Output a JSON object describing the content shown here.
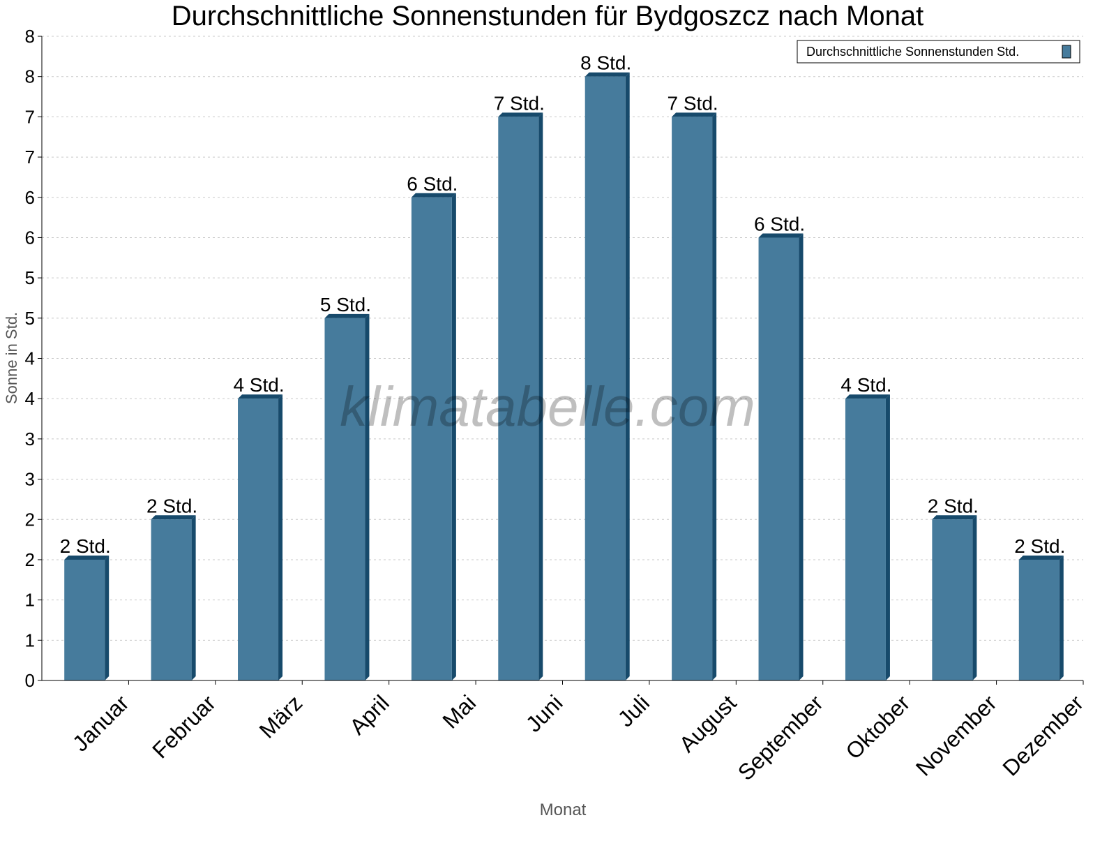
{
  "chart_data": {
    "type": "bar",
    "title": "Durchschnittliche Sonnenstunden für Bydgoszcz nach Monat",
    "xlabel": "Monat",
    "ylabel": "Sonne in Std.",
    "categories": [
      "Januar",
      "Februar",
      "März",
      "April",
      "Mai",
      "Juni",
      "Juli",
      "August",
      "September",
      "Oktober",
      "November",
      "Dezember"
    ],
    "series": [
      {
        "name": "Durchschnittliche Sonnenstunden Std.",
        "values": [
          1.5,
          2.0,
          3.5,
          4.5,
          6.0,
          7.0,
          7.5,
          7.0,
          5.5,
          3.5,
          2.0,
          1.5
        ],
        "labels": [
          "2 Std.",
          "2 Std.",
          "4 Std.",
          "5 Std.",
          "6 Std.",
          "7 Std.",
          "8 Std.",
          "7 Std.",
          "6 Std.",
          "4 Std.",
          "2 Std.",
          "2 Std."
        ]
      }
    ],
    "ylim": [
      0,
      8
    ],
    "ytick_step": 0.5,
    "ytick_labels": [
      "0",
      "1",
      "1",
      "2",
      "2",
      "3",
      "3",
      "4",
      "4",
      "5",
      "5",
      "6",
      "6",
      "7",
      "7",
      "8",
      "8"
    ],
    "grid": true,
    "legend_position": "top-right",
    "watermark": "klimatabelle.com",
    "colors": {
      "bar": "#467b9c",
      "bar_side": "#174a6b",
      "grid": "#c8c8c8",
      "axis_label": "#555555"
    }
  }
}
